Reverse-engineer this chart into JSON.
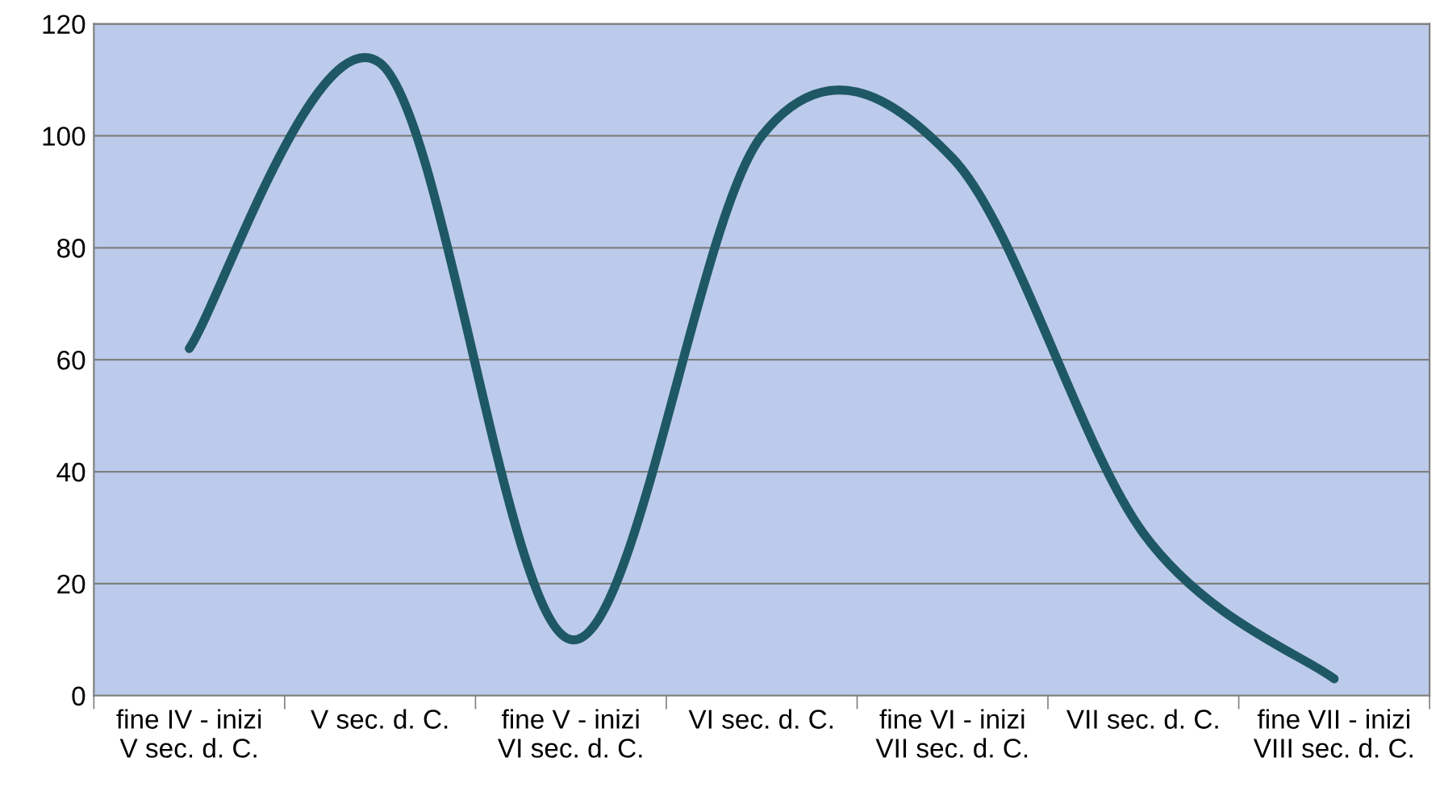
{
  "chart_data": {
    "type": "line",
    "categories": [
      "fine IV - inizi\nV sec. d. C.",
      "V sec. d. C.",
      "fine V - inizi\nVI sec. d. C.",
      "VI sec. d. C.",
      "fine VI - inizi\nVII sec. d. C.",
      "VII sec. d. C.",
      "fine VII - inizi\nVIII sec. d. C."
    ],
    "series": [
      {
        "color": "#1f5865",
        "values": [
          62,
          113,
          10,
          100,
          96,
          29,
          3
        ]
      }
    ],
    "ylim": [
      0,
      120
    ],
    "yticks": [
      0,
      20,
      40,
      60,
      80,
      100,
      120
    ],
    "grid": "y",
    "legend": false,
    "marker": "none",
    "line_style": "solid"
  }
}
